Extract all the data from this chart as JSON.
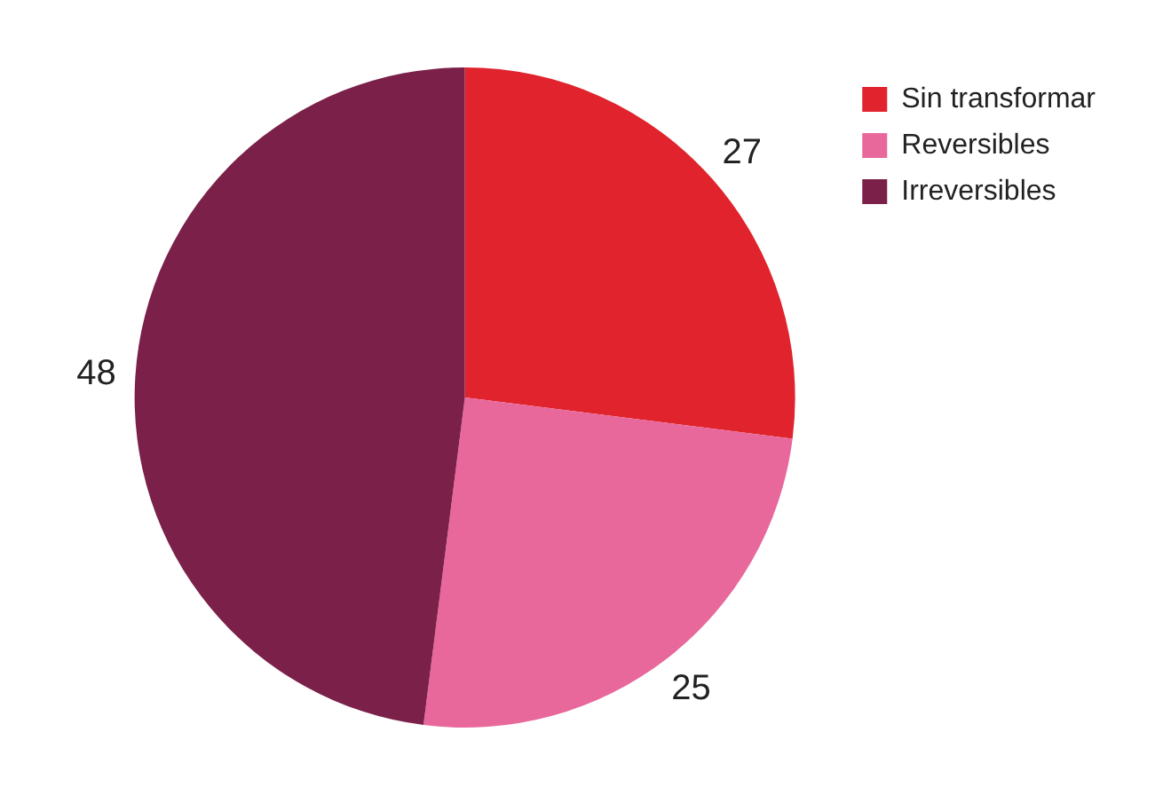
{
  "chart_data": {
    "type": "pie",
    "categories": [
      "Sin transformar",
      "Reversibles",
      "Irreversibles"
    ],
    "values": [
      27,
      25,
      48
    ],
    "colors": [
      "#e0232c",
      "#e8689c",
      "#7b2049"
    ],
    "legend": "top right",
    "data_labels": true
  }
}
